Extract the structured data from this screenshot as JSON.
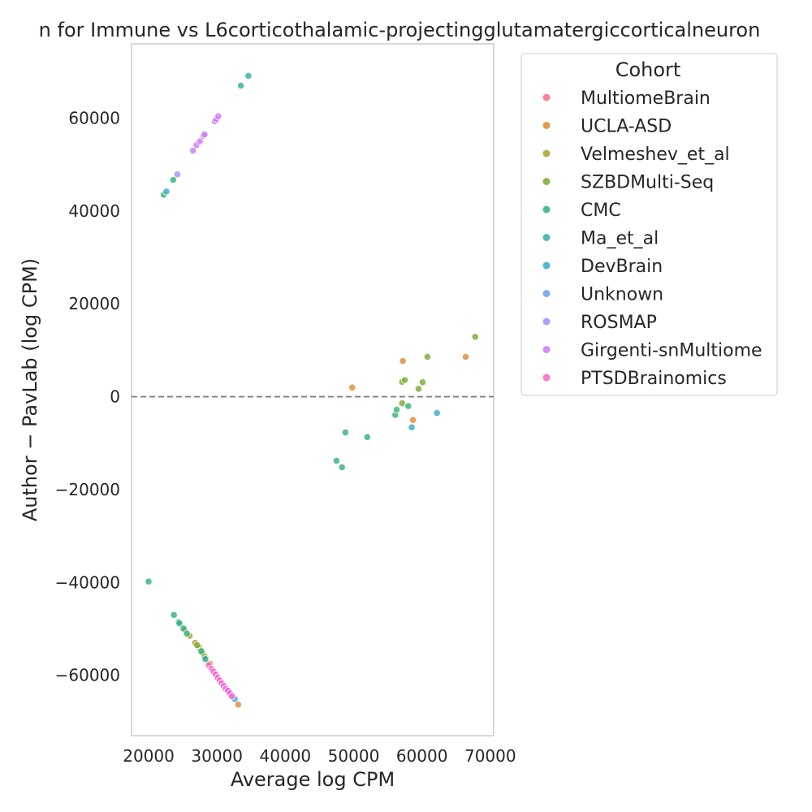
{
  "chart_data": {
    "type": "scatter",
    "title": "n for Immune vs L6corticothalamic-projectingglutamatergiccorticalneuron",
    "xlabel": "Average log CPM",
    "ylabel": "Author − PavLab (log CPM)",
    "xlim": [
      17500,
      70500
    ],
    "ylim": [
      -73000,
      76000
    ],
    "xticks": [
      20000,
      30000,
      40000,
      50000,
      60000,
      70000
    ],
    "yticks": [
      -60000,
      -40000,
      -20000,
      0,
      20000,
      40000,
      60000
    ],
    "reference_line": 0,
    "grid": false,
    "legend": {
      "title": "Cohort",
      "placement": "outside-upper-right"
    },
    "series": [
      {
        "name": "MultiomeBrain",
        "color": "#f77189",
        "points": []
      },
      {
        "name": "UCLA-ASD",
        "color": "#dc8932",
        "points": [
          [
            49800,
            2000
          ],
          [
            57200,
            7700
          ],
          [
            58700,
            -5000
          ],
          [
            66400,
            8600
          ],
          [
            33100,
            -66300
          ]
        ]
      },
      {
        "name": "Velmeshev_et_al",
        "color": "#ae9d31",
        "points": [
          [
            25300,
            -50300
          ],
          [
            26000,
            -51500
          ],
          [
            26800,
            -53000
          ],
          [
            27400,
            -54000
          ],
          [
            27900,
            -55200
          ],
          [
            28400,
            -56300
          ],
          [
            29000,
            -57500
          ]
        ]
      },
      {
        "name": "SZBDMulti-Seq",
        "color": "#77ab31",
        "points": [
          [
            57100,
            3200
          ],
          [
            57500,
            3600
          ],
          [
            57100,
            -1400
          ],
          [
            59500,
            1700
          ],
          [
            60100,
            3100
          ],
          [
            60800,
            8600
          ],
          [
            67800,
            12900
          ],
          [
            27100,
            -53500
          ],
          [
            28200,
            -56000
          ]
        ]
      },
      {
        "name": "CMC",
        "color": "#33b07a",
        "points": [
          [
            20000,
            -39800
          ],
          [
            22200,
            43500
          ],
          [
            23600,
            46700
          ],
          [
            23700,
            -47000
          ],
          [
            24400,
            -48500
          ],
          [
            24500,
            -48800
          ],
          [
            25100,
            -49900
          ],
          [
            25600,
            -51000
          ],
          [
            27700,
            -54800
          ],
          [
            47500,
            -13800
          ],
          [
            48300,
            -15200
          ],
          [
            48800,
            -7700
          ],
          [
            52000,
            -8700
          ],
          [
            56100,
            -3900
          ],
          [
            56300,
            -2800
          ],
          [
            58000,
            -2000
          ]
        ]
      },
      {
        "name": "Ma_et_al",
        "color": "#36ada4",
        "points": [
          [
            33500,
            67000
          ],
          [
            34600,
            69100
          ],
          [
            28300,
            -56500
          ]
        ]
      },
      {
        "name": "DevBrain",
        "color": "#38a9c5",
        "points": [
          [
            22600,
            44200
          ],
          [
            58500,
            -6600
          ],
          [
            62200,
            -3500
          ],
          [
            32600,
            -65100
          ]
        ]
      },
      {
        "name": "Unknown",
        "color": "#6e9bf4",
        "points": [
          [
            31700,
            -63400
          ]
        ]
      },
      {
        "name": "ROSMAP",
        "color": "#a48cf4",
        "points": [
          [
            24200,
            47900
          ],
          [
            32100,
            -64400
          ]
        ]
      },
      {
        "name": "Girgenti-snMultiome",
        "color": "#cc7af4",
        "points": [
          [
            26500,
            53000
          ],
          [
            27000,
            54200
          ],
          [
            27500,
            55000
          ],
          [
            28000,
            56200
          ],
          [
            28200,
            56500
          ],
          [
            29700,
            59300
          ],
          [
            29900,
            59800
          ],
          [
            30200,
            60400
          ]
        ]
      },
      {
        "name": "PTSDBrainomics",
        "color": "#f565cc",
        "points": [
          [
            28800,
            -57800
          ],
          [
            29200,
            -58600
          ],
          [
            29500,
            -59200
          ],
          [
            29800,
            -59800
          ],
          [
            30100,
            -60500
          ],
          [
            30400,
            -61100
          ],
          [
            30700,
            -61700
          ],
          [
            31000,
            -62300
          ],
          [
            31300,
            -62900
          ],
          [
            31600,
            -63300
          ],
          [
            31900,
            -63900
          ],
          [
            32200,
            -64500
          ]
        ]
      }
    ]
  }
}
